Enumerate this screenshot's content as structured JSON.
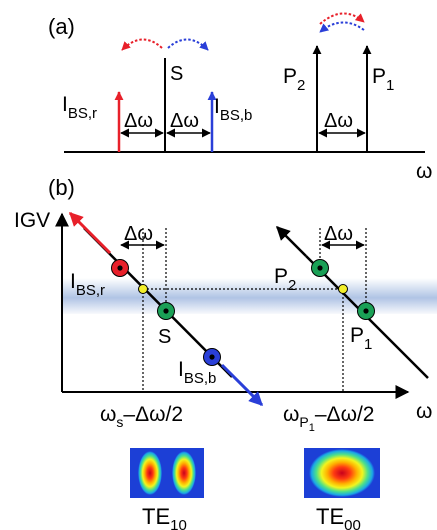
{
  "panel_a": {
    "label": "(a)",
    "signal": "S",
    "stokes": {
      "base": "I",
      "sub": "BS,r"
    },
    "antistokes": {
      "base": "I",
      "sub": "BS,b"
    },
    "delta_left": "Δω",
    "delta_right": "Δω",
    "pump2": {
      "base": "P",
      "sub": "2"
    },
    "pump1": {
      "base": "P",
      "sub": "1"
    },
    "delta_pumps": "Δω",
    "omega_axis": "ω"
  },
  "panel_b": {
    "label": "(b)",
    "y_axis": "IGV",
    "x_axis": "ω",
    "delta_left": "Δω",
    "delta_right": "Δω",
    "stokes": {
      "base": "I",
      "sub": "BS,r"
    },
    "antistokes": {
      "base": "I",
      "sub": "BS,b"
    },
    "signal": "S",
    "pump2": {
      "base": "P",
      "sub": "2"
    },
    "pump1": {
      "base": "P",
      "sub": "1"
    },
    "tick_left": {
      "base": "ω",
      "sub": "s",
      "rest": "–Δω/2"
    },
    "tick_right": {
      "base": "ω",
      "sub": "P",
      "subsub": "1",
      "rest": "–Δω/2"
    }
  },
  "modes": [
    {
      "base": "TE",
      "sub": "10"
    },
    {
      "base": "TE",
      "sub": "00"
    }
  ],
  "colors": {
    "red": "#e8202a",
    "blue": "#2a3fd8",
    "green": "#1aa056",
    "yellow": "#f3ef2a",
    "band": "#6f93cf"
  }
}
